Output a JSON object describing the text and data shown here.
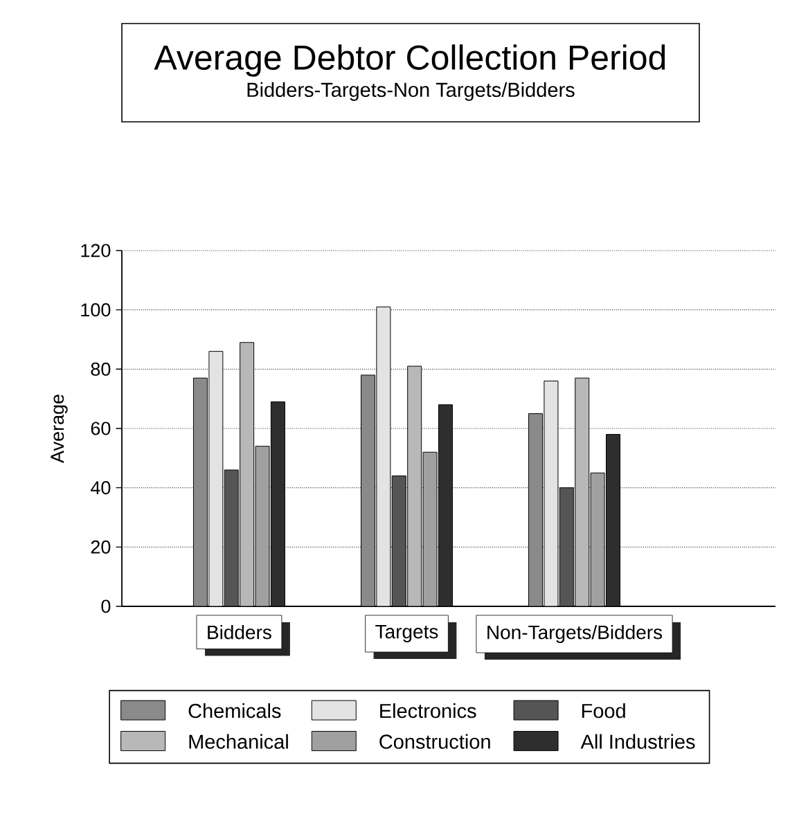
{
  "chart_data": {
    "type": "bar",
    "title": "Average Debtor Collection Period",
    "subtitle": "Bidders-Targets-Non Targets/Bidders",
    "ylabel": "Average",
    "categories": [
      "Bidders",
      "Targets",
      "Non-Targets/Bidders"
    ],
    "series": [
      {
        "name": "Chemicals",
        "color": "#8a8a8a",
        "values": [
          77,
          78,
          65
        ]
      },
      {
        "name": "Electronics",
        "color": "#e3e3e3",
        "values": [
          86,
          101,
          76
        ]
      },
      {
        "name": "Food",
        "color": "#555555",
        "values": [
          46,
          44,
          40
        ]
      },
      {
        "name": "Mechanical",
        "color": "#b8b8b8",
        "values": [
          89,
          81,
          77
        ]
      },
      {
        "name": "Construction",
        "color": "#a0a0a0",
        "values": [
          54,
          52,
          45
        ]
      },
      {
        "name": "All Industries",
        "color": "#2e2e2e",
        "values": [
          69,
          68,
          58
        ]
      }
    ],
    "ylim": [
      0,
      120
    ],
    "yticks": [
      0,
      20,
      40,
      60,
      80,
      100,
      120
    ],
    "grid": "y",
    "legend": "bottom"
  }
}
